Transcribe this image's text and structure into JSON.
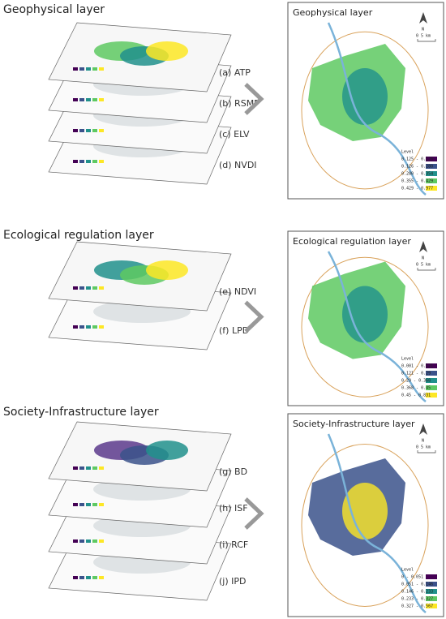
{
  "sections": [
    {
      "title": "Geophysical layer",
      "layers": [
        "(a)  ATP",
        "(b)  RSMP",
        "(c)  ELV",
        "(d)  NVDI"
      ],
      "map": {
        "title": "Geophysical layer",
        "north": "N",
        "scale": "0    5 km",
        "legend_title": "Level",
        "legend": [
          "0.125 - 0.126",
          "0.126 - 0.280",
          "0.280 - 0.354",
          "0.355 - 0.429",
          "0.429 - 0.977"
        ]
      }
    },
    {
      "title": "Ecological regulation layer",
      "layers": [
        "(e)  NDVI",
        "(f)  LPD"
      ],
      "map": {
        "title": "Ecological regulation layer",
        "north": "N",
        "scale": "0    5 km",
        "legend_title": "Level",
        "legend": [
          "0.001 - 0.121",
          "0.121 - 0.29",
          "0.29 - 0.368",
          "0.368 - 0.45",
          "0.45 - 0.831"
        ]
      }
    },
    {
      "title": "Society-Infrastructure layer",
      "layers": [
        "(g)  BD",
        "(h)  ISF",
        "(i)  RCF",
        "(j)  IPD"
      ],
      "map": {
        "title": "Society-Infrastructure layer",
        "north": "N",
        "scale": "0    5 km",
        "legend_title": "Level",
        "legend": [
          "0 - 0.051",
          "0.051 - 0.146",
          "0.146 - 0.233",
          "0.233 - 0.327",
          "0.327 - 0.567"
        ]
      }
    }
  ]
}
